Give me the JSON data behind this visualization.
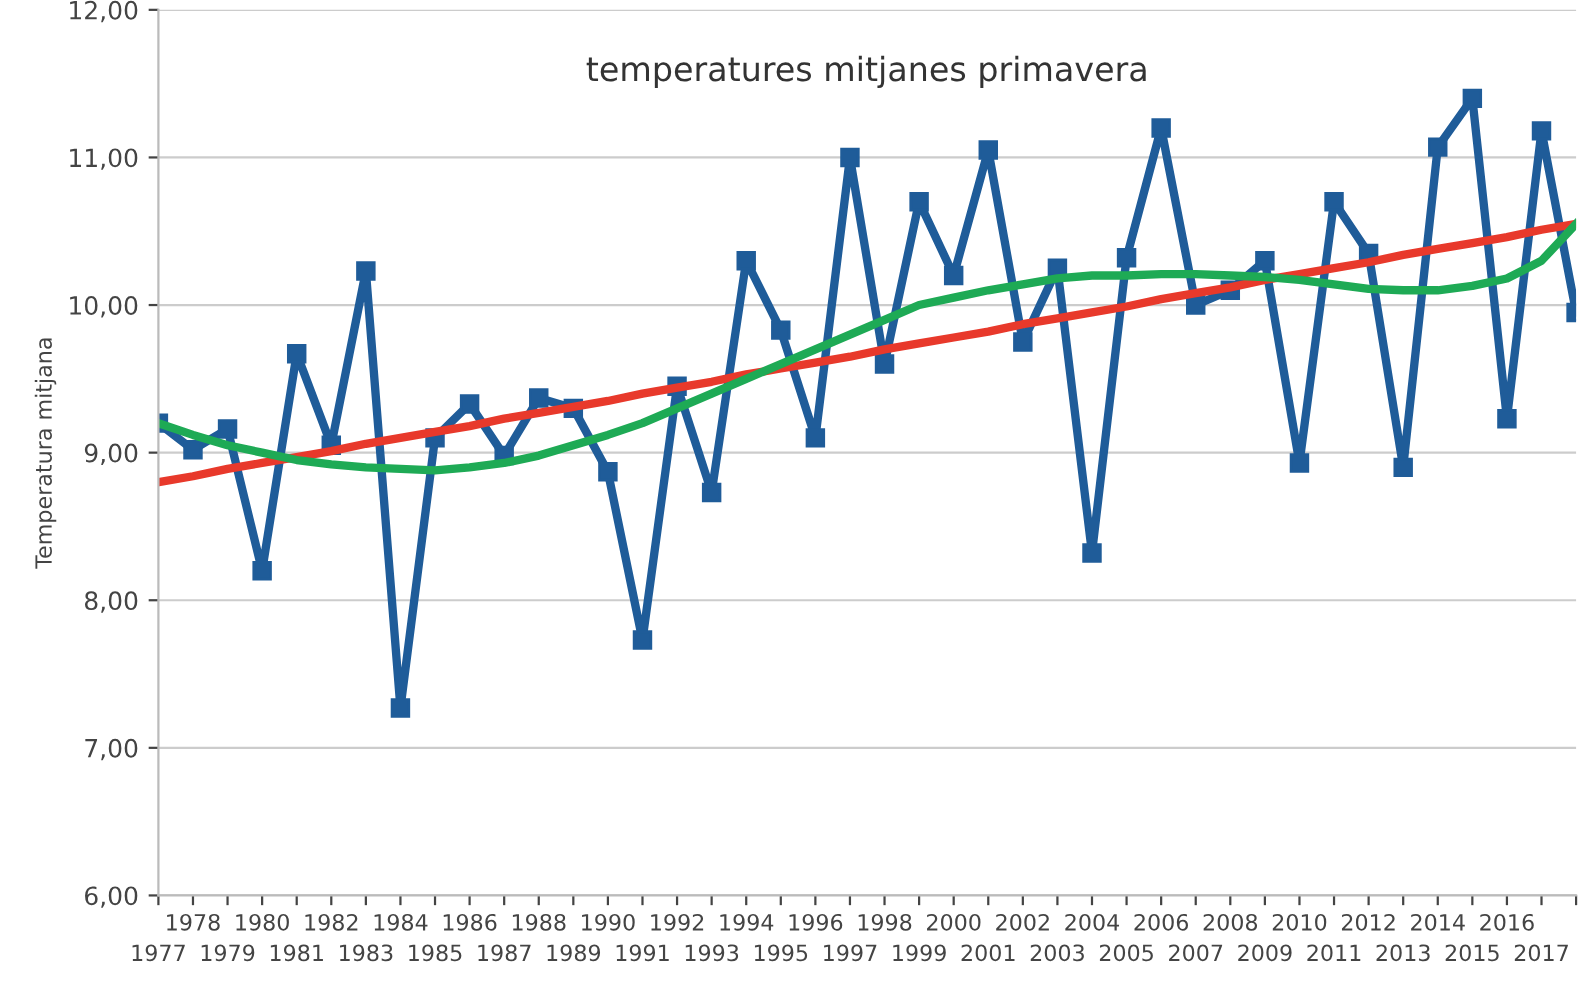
{
  "chart_data": {
    "type": "line",
    "title": "temperatures mitjanes primavera",
    "ylabel": "Temperatura mitjana",
    "categories": [
      "1977",
      "1978",
      "1979",
      "1980",
      "1981",
      "1982",
      "1983",
      "1984",
      "1985",
      "1986",
      "1987",
      "1988",
      "1989",
      "1990",
      "1991",
      "1992",
      "1993",
      "1994",
      "1995",
      "1996",
      "1997",
      "1998",
      "1999",
      "2000",
      "2001",
      "2002",
      "2003",
      "2004",
      "2005",
      "2006",
      "2007",
      "2008",
      "2009",
      "2010",
      "2011",
      "2012",
      "2013",
      "2014",
      "2015",
      "2016",
      "2017",
      null
    ],
    "series": [
      {
        "color": "#1f5c99",
        "marker": "square",
        "values": [
          9.2,
          9.02,
          9.16,
          8.2,
          9.67,
          9.05,
          10.23,
          7.27,
          9.1,
          9.33,
          8.98,
          9.37,
          9.3,
          8.87,
          7.73,
          9.45,
          8.73,
          10.3,
          9.83,
          9.1,
          11.0,
          9.6,
          10.7,
          10.2,
          11.05,
          9.75,
          10.25,
          8.32,
          10.32,
          11.2,
          10.0,
          10.1,
          10.3,
          8.93,
          10.7,
          10.35,
          8.9,
          11.07,
          11.4,
          9.23,
          11.18,
          9.95
        ]
      },
      {
        "color": "#e8392b",
        "marker": "none",
        "values": [
          8.8,
          8.84,
          8.89,
          8.93,
          8.97,
          9.01,
          9.06,
          9.1,
          9.14,
          9.18,
          9.23,
          9.27,
          9.31,
          9.35,
          9.4,
          9.44,
          9.48,
          9.53,
          9.57,
          9.61,
          9.65,
          9.7,
          9.74,
          9.78,
          9.82,
          9.87,
          9.91,
          9.95,
          9.99,
          10.04,
          10.08,
          10.12,
          10.17,
          10.21,
          10.25,
          10.29,
          10.34,
          10.38,
          10.42,
          10.46,
          10.51,
          10.55
        ]
      },
      {
        "color": "#1eaa55",
        "marker": "none",
        "values": [
          9.2,
          9.12,
          9.05,
          9.0,
          8.95,
          8.92,
          8.9,
          8.89,
          8.88,
          8.9,
          8.93,
          8.98,
          9.05,
          9.12,
          9.2,
          9.3,
          9.4,
          9.5,
          9.6,
          9.7,
          9.8,
          9.9,
          10.0,
          10.05,
          10.1,
          10.14,
          10.18,
          10.2,
          10.2,
          10.21,
          10.21,
          10.2,
          10.19,
          10.17,
          10.14,
          10.11,
          10.1,
          10.1,
          10.13,
          10.18,
          10.3,
          10.55
        ]
      }
    ],
    "ylim": [
      6,
      12
    ],
    "yticks": [
      {
        "value": 6,
        "label": "6,00"
      },
      {
        "value": 7,
        "label": "7,00"
      },
      {
        "value": 8,
        "label": "8,00"
      },
      {
        "value": 9,
        "label": "9,00"
      },
      {
        "value": 10,
        "label": "10,00"
      },
      {
        "value": 11,
        "label": "11,00"
      },
      {
        "value": 12,
        "label": "12,00"
      }
    ],
    "grid": "y",
    "legend": false,
    "line_style": "solid"
  }
}
